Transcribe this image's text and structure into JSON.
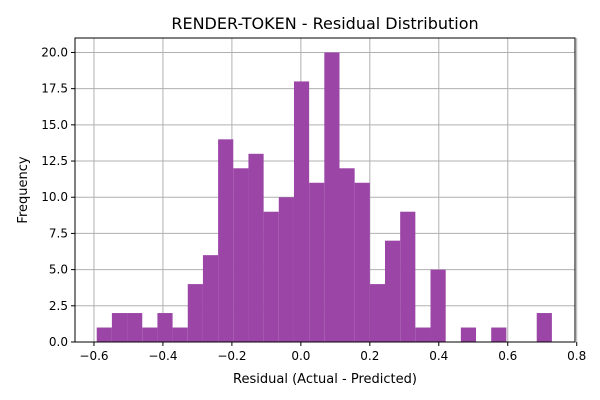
{
  "chart_data": {
    "type": "histogram",
    "title": "RENDER-TOKEN - Residual Distribution",
    "xlabel": "Residual (Actual - Predicted)",
    "ylabel": "Frequency",
    "xlim": [
      -0.655,
      0.795
    ],
    "ylim": [
      0,
      21
    ],
    "x_ticks": [
      -0.6,
      -0.4,
      -0.2,
      0.0,
      0.2,
      0.4,
      0.6,
      0.8
    ],
    "x_tick_labels": [
      "−0.6",
      "−0.4",
      "−0.2",
      "0.0",
      "0.2",
      "0.4",
      "0.6",
      "0.8"
    ],
    "y_ticks": [
      0,
      2.5,
      5,
      7.5,
      10,
      12.5,
      15,
      17.5,
      20
    ],
    "y_tick_labels": [
      "0.0",
      "2.5",
      "5.0",
      "7.5",
      "10.0",
      "12.5",
      "15.0",
      "17.5",
      "20.0"
    ],
    "grid": true,
    "bar_color": "#9b45a6",
    "bins": [
      {
        "x0": -0.592,
        "x1": -0.548,
        "count": 1
      },
      {
        "x0": -0.548,
        "x1": -0.504,
        "count": 2
      },
      {
        "x0": -0.504,
        "x1": -0.46,
        "count": 2
      },
      {
        "x0": -0.46,
        "x1": -0.416,
        "count": 1
      },
      {
        "x0": -0.416,
        "x1": -0.372,
        "count": 2
      },
      {
        "x0": -0.372,
        "x1": -0.328,
        "count": 1
      },
      {
        "x0": -0.328,
        "x1": -0.284,
        "count": 4
      },
      {
        "x0": -0.284,
        "x1": -0.24,
        "count": 6
      },
      {
        "x0": -0.24,
        "x1": -0.196,
        "count": 14
      },
      {
        "x0": -0.196,
        "x1": -0.152,
        "count": 12
      },
      {
        "x0": -0.152,
        "x1": -0.108,
        "count": 13
      },
      {
        "x0": -0.108,
        "x1": -0.064,
        "count": 9
      },
      {
        "x0": -0.064,
        "x1": -0.02,
        "count": 10
      },
      {
        "x0": -0.02,
        "x1": 0.024,
        "count": 18
      },
      {
        "x0": 0.024,
        "x1": 0.068,
        "count": 11
      },
      {
        "x0": 0.068,
        "x1": 0.112,
        "count": 20
      },
      {
        "x0": 0.112,
        "x1": 0.156,
        "count": 12
      },
      {
        "x0": 0.156,
        "x1": 0.2,
        "count": 11
      },
      {
        "x0": 0.2,
        "x1": 0.244,
        "count": 4
      },
      {
        "x0": 0.244,
        "x1": 0.288,
        "count": 7
      },
      {
        "x0": 0.288,
        "x1": 0.332,
        "count": 9
      },
      {
        "x0": 0.332,
        "x1": 0.376,
        "count": 1
      },
      {
        "x0": 0.376,
        "x1": 0.42,
        "count": 5
      },
      {
        "x0": 0.42,
        "x1": 0.464,
        "count": 0
      },
      {
        "x0": 0.464,
        "x1": 0.508,
        "count": 1
      },
      {
        "x0": 0.508,
        "x1": 0.552,
        "count": 0
      },
      {
        "x0": 0.552,
        "x1": 0.596,
        "count": 1
      },
      {
        "x0": 0.596,
        "x1": 0.64,
        "count": 0
      },
      {
        "x0": 0.64,
        "x1": 0.684,
        "count": 0
      },
      {
        "x0": 0.684,
        "x1": 0.728,
        "count": 2
      }
    ]
  }
}
